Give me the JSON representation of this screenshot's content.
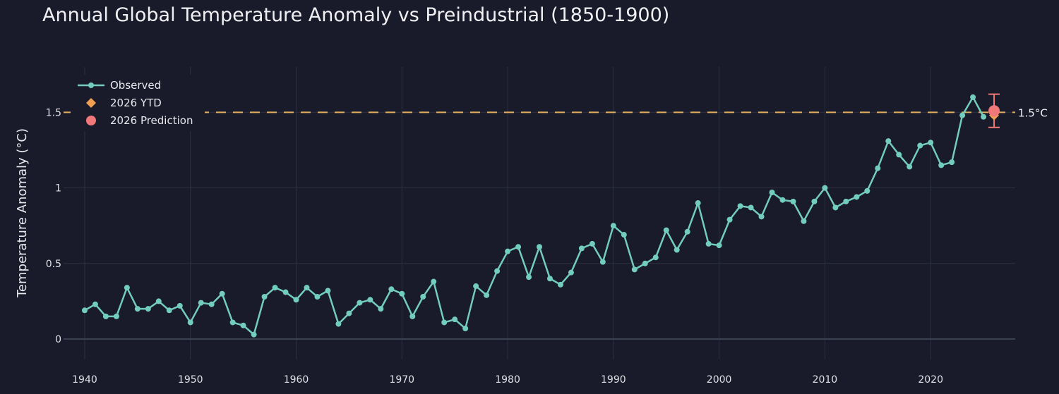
{
  "chart_data": {
    "type": "line",
    "title": "Annual Global Temperature Anomaly vs Preindustrial (1850-1900)",
    "xlabel": "",
    "ylabel": "Temperature Anomaly (°C)",
    "xlim": [
      1938,
      2028
    ],
    "ylim": [
      -0.135,
      1.8
    ],
    "xticks": [
      1940,
      1950,
      1960,
      1970,
      1980,
      1990,
      2000,
      2010,
      2020
    ],
    "yticks": [
      0,
      0.5,
      1,
      1.5
    ],
    "ytick_labels": [
      "0",
      "0.5",
      "1",
      "1.5"
    ],
    "grid": true,
    "legend_position": "top-left",
    "series": [
      {
        "name": "Observed",
        "color": "#72cdbf",
        "x": [
          1940,
          1941,
          1942,
          1943,
          1944,
          1945,
          1946,
          1947,
          1948,
          1949,
          1950,
          1951,
          1952,
          1953,
          1954,
          1955,
          1956,
          1957,
          1958,
          1959,
          1960,
          1961,
          1962,
          1963,
          1964,
          1965,
          1966,
          1967,
          1968,
          1969,
          1970,
          1971,
          1972,
          1973,
          1974,
          1975,
          1976,
          1977,
          1978,
          1979,
          1980,
          1981,
          1982,
          1983,
          1984,
          1985,
          1986,
          1987,
          1988,
          1989,
          1990,
          1991,
          1992,
          1993,
          1994,
          1995,
          1996,
          1997,
          1998,
          1999,
          2000,
          2001,
          2002,
          2003,
          2004,
          2005,
          2006,
          2007,
          2008,
          2009,
          2010,
          2011,
          2012,
          2013,
          2014,
          2015,
          2016,
          2017,
          2018,
          2019,
          2020,
          2021,
          2022,
          2023,
          2024,
          2025
        ],
        "y": [
          0.19,
          0.23,
          0.15,
          0.15,
          0.34,
          0.2,
          0.2,
          0.25,
          0.19,
          0.22,
          0.11,
          0.24,
          0.23,
          0.3,
          0.11,
          0.09,
          0.03,
          0.28,
          0.34,
          0.31,
          0.26,
          0.34,
          0.28,
          0.32,
          0.1,
          0.17,
          0.24,
          0.26,
          0.2,
          0.33,
          0.3,
          0.15,
          0.28,
          0.38,
          0.11,
          0.13,
          0.07,
          0.35,
          0.29,
          0.45,
          0.58,
          0.61,
          0.41,
          0.61,
          0.4,
          0.36,
          0.44,
          0.6,
          0.63,
          0.51,
          0.75,
          0.69,
          0.46,
          0.5,
          0.54,
          0.72,
          0.59,
          0.71,
          0.9,
          0.63,
          0.62,
          0.79,
          0.88,
          0.87,
          0.81,
          0.97,
          0.92,
          0.91,
          0.78,
          0.91,
          1.0,
          0.87,
          0.91,
          0.94,
          0.98,
          1.13,
          1.31,
          1.22,
          1.14,
          1.28,
          1.3,
          1.15,
          1.17,
          1.48,
          1.6,
          1.47
        ]
      },
      {
        "name": "2026 YTD",
        "color": "#f0a050",
        "marker": "diamond",
        "x": [
          2026
        ],
        "y": [
          1.48
        ]
      },
      {
        "name": "2026 Prediction",
        "color": "#f07878",
        "marker": "circle",
        "x": [
          2026
        ],
        "y": [
          1.51
        ],
        "error_low": [
          1.4
        ],
        "error_high": [
          1.62
        ]
      }
    ],
    "reference_line": {
      "y": 1.5,
      "label": "1.5°C",
      "color": "#e0b060",
      "style": "dashed"
    }
  }
}
